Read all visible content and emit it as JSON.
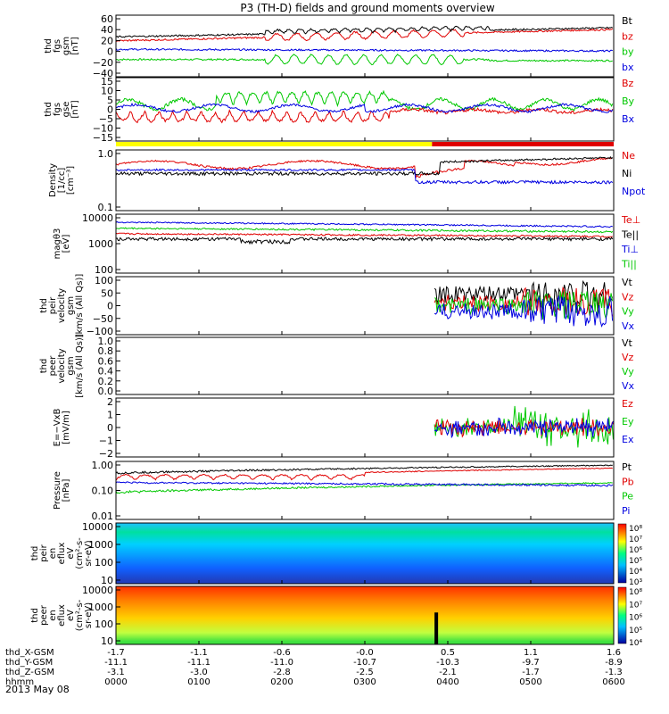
{
  "title": "P3 (TH-D) fields and ground moments overview",
  "date_label": "2013 May 08",
  "colors": {
    "black": "#000000",
    "red": "#e00000",
    "green": "#00c800",
    "blue": "#0000e0",
    "yellow": "#ffff00"
  },
  "panels": [
    {
      "id": "fgs_gsm",
      "ylabel": [
        "thd",
        "fgs",
        "gsm",
        "[nT]"
      ],
      "yticks": [
        "60",
        "40",
        "20",
        "0",
        "−20",
        "−40"
      ],
      "series": [
        {
          "name": "Bt",
          "color": "black"
        },
        {
          "name": "bz",
          "color": "red"
        },
        {
          "name": "by",
          "color": "green"
        },
        {
          "name": "bx",
          "color": "blue"
        }
      ]
    },
    {
      "id": "fgs_dsl",
      "ylabel": [
        "thd",
        "fgs",
        "gse",
        "[nT]"
      ],
      "yticks": [
        "15",
        "10",
        "5",
        "0",
        "−5",
        "−10",
        "−15"
      ],
      "series": [
        {
          "name": "Bz",
          "color": "red"
        },
        {
          "name": "By",
          "color": "green"
        },
        {
          "name": "Bx",
          "color": "blue"
        }
      ]
    },
    {
      "id": "density",
      "ylabel": [
        "Density",
        "[1/cc]",
        "[cm⁻³]"
      ],
      "yticks": [
        "1.0",
        "0.1"
      ],
      "series": [
        {
          "name": "Ne",
          "color": "red"
        },
        {
          "name": "Ni",
          "color": "black"
        },
        {
          "name": "Npot",
          "color": "blue"
        }
      ]
    },
    {
      "id": "temperature",
      "ylabel": [
        "magθ3",
        "[eV]"
      ],
      "yticks": [
        "10000",
        "1000",
        "100"
      ],
      "series": [
        {
          "name": "Te⊥",
          "color": "red"
        },
        {
          "name": "Te||",
          "color": "black"
        },
        {
          "name": "Ti⊥",
          "color": "blue"
        },
        {
          "name": "Ti||",
          "color": "green"
        }
      ]
    },
    {
      "id": "ion_velocity",
      "ylabel": [
        "thd",
        "peir",
        "velocity",
        "gsm",
        "[km/s (All Qs)]"
      ],
      "yticks": [
        "100",
        "50",
        "0",
        "−50",
        "−100"
      ],
      "series": [
        {
          "name": "Vt",
          "color": "black"
        },
        {
          "name": "Vz",
          "color": "red"
        },
        {
          "name": "Vy",
          "color": "green"
        },
        {
          "name": "Vx",
          "color": "blue"
        }
      ]
    },
    {
      "id": "electron_velocity",
      "ylabel": [
        "thd",
        "peer",
        "velocity",
        "gsm",
        "[km/s (All Qs)]"
      ],
      "yticks": [
        "1.0",
        "0.8",
        "0.6",
        "0.4",
        "0.2",
        "0.0"
      ],
      "series": [
        {
          "name": "Vt",
          "color": "black"
        },
        {
          "name": "Vz",
          "color": "red"
        },
        {
          "name": "Vy",
          "color": "green"
        },
        {
          "name": "Vx",
          "color": "blue"
        }
      ]
    },
    {
      "id": "efield",
      "ylabel": [
        "E=−VxB",
        "[mV/m]"
      ],
      "yticks": [
        "2",
        "1",
        "0",
        "−1",
        "−2"
      ],
      "series": [
        {
          "name": "Ez",
          "color": "red"
        },
        {
          "name": "Ey",
          "color": "green"
        },
        {
          "name": "Ex",
          "color": "blue"
        }
      ]
    },
    {
      "id": "pressure",
      "ylabel": [
        "Pressure",
        "[nPa]"
      ],
      "yticks": [
        "1.00",
        "0.10",
        "0.01"
      ],
      "series": [
        {
          "name": "Pt",
          "color": "black"
        },
        {
          "name": "Pb",
          "color": "red"
        },
        {
          "name": "Pe",
          "color": "green"
        },
        {
          "name": "Pi",
          "color": "blue"
        }
      ]
    },
    {
      "id": "ion_spectrogram",
      "ylabel": [
        "thd",
        "peir",
        "en",
        "eflux",
        "eV",
        "(cm²-s-",
        "sr-eV)"
      ],
      "yticks": [
        "10000",
        "1000",
        "100",
        "10"
      ],
      "colorbar": [
        "10⁸",
        "10⁷",
        "10⁶",
        "10⁵",
        "10⁴",
        "10³"
      ]
    },
    {
      "id": "electron_spectrogram",
      "ylabel": [
        "thd",
        "peer",
        "en",
        "eflux",
        "eV",
        "(cm²-s-",
        "sr-eV)"
      ],
      "yticks": [
        "10000",
        "1000",
        "100",
        "10"
      ],
      "colorbar": [
        "10⁸",
        "10⁷",
        "10⁶",
        "10⁵",
        "10⁴"
      ]
    }
  ],
  "x_axis": {
    "rows": [
      {
        "label": "thd_X-GSM",
        "values": [
          "-1.7",
          "-1.1",
          "-0.6",
          "-0.0",
          "0.5",
          "1.1",
          "1.6"
        ]
      },
      {
        "label": "thd_Y-GSM",
        "values": [
          "-11.1",
          "-11.1",
          "-11.0",
          "-10.7",
          "-10.3",
          "-9.7",
          "-8.9"
        ]
      },
      {
        "label": "thd_Z-GSM",
        "values": [
          "-3.1",
          "-3.0",
          "-2.8",
          "-2.5",
          "-2.1",
          "-1.7",
          "-1.3"
        ]
      },
      {
        "label": "hhmm",
        "values": [
          "0000",
          "0100",
          "0200",
          "0300",
          "0400",
          "0500",
          "0600"
        ]
      }
    ]
  },
  "chart_data": {
    "type": "line",
    "title": "P3 (TH-D) fields and ground moments overview",
    "x_hhmm": [
      "0000",
      "0100",
      "0200",
      "0300",
      "0400",
      "0500",
      "0600"
    ],
    "series": [
      {
        "name": "Bt",
        "values": [
          25,
          28,
          30,
          32,
          30,
          36,
          42
        ]
      },
      {
        "name": "bz",
        "values": [
          18,
          20,
          22,
          25,
          28,
          32,
          40
        ]
      },
      {
        "name": "by",
        "values": [
          -15,
          -10,
          -5,
          -10,
          -12,
          -12,
          -15
        ]
      },
      {
        "name": "bx",
        "values": [
          5,
          3,
          2,
          5,
          5,
          2,
          0
        ]
      },
      {
        "name": "Ne",
        "values": [
          0.65,
          0.7,
          0.7,
          0.65,
          0.45,
          0.5,
          0.7
        ]
      },
      {
        "name": "Ni",
        "values": [
          0.4,
          0.45,
          0.45,
          0.4,
          0.35,
          0.45,
          0.8
        ]
      },
      {
        "name": "Npot",
        "values": [
          0.5,
          0.5,
          0.5,
          0.45,
          0.25,
          0.3,
          0.35
        ]
      }
    ],
    "ylabel": "",
    "xlabel": ""
  }
}
